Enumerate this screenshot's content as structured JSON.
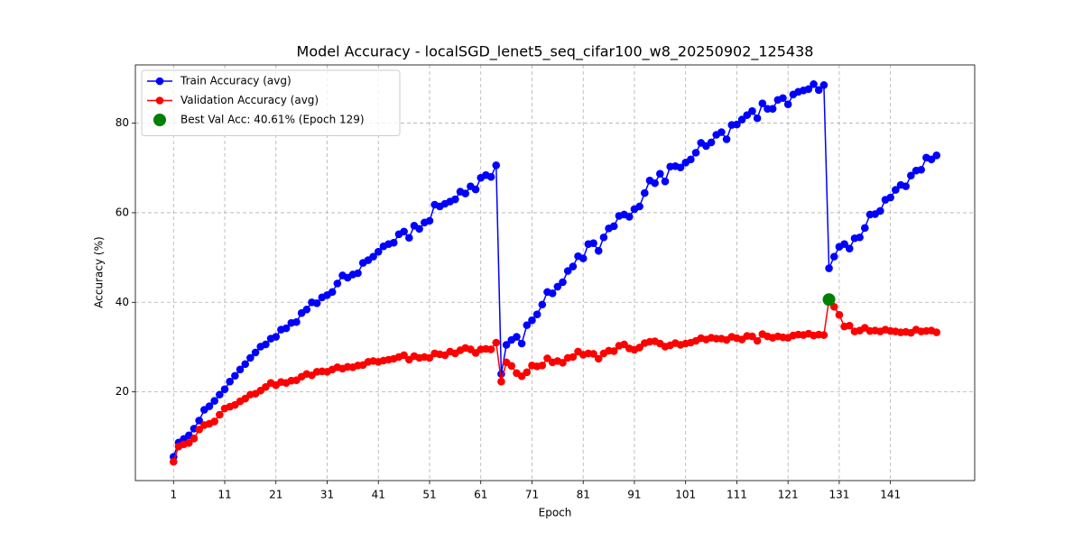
{
  "chart_data": {
    "type": "line",
    "title": "Model Accuracy - localSGD_lenet5_seq_cifar100_w8_20250902_125438",
    "xlabel": "Epoch",
    "ylabel": "Accuracy (%)",
    "x": [
      1,
      2,
      3,
      4,
      5,
      6,
      7,
      8,
      9,
      10,
      11,
      12,
      13,
      14,
      15,
      16,
      17,
      18,
      19,
      20,
      21,
      22,
      23,
      24,
      25,
      26,
      27,
      28,
      29,
      30,
      31,
      32,
      33,
      34,
      35,
      36,
      37,
      38,
      39,
      40,
      41,
      42,
      43,
      44,
      45,
      46,
      47,
      48,
      49,
      50,
      51,
      52,
      53,
      54,
      55,
      56,
      57,
      58,
      59,
      60,
      61,
      62,
      63,
      64,
      65,
      66,
      67,
      68,
      69,
      70,
      71,
      72,
      73,
      74,
      75,
      76,
      77,
      78,
      79,
      80,
      81,
      82,
      83,
      84,
      85,
      86,
      87,
      88,
      89,
      90,
      91,
      92,
      93,
      94,
      95,
      96,
      97,
      98,
      99,
      100,
      101,
      102,
      103,
      104,
      105,
      106,
      107,
      108,
      109,
      110,
      111,
      112,
      113,
      114,
      115,
      116,
      117,
      118,
      119,
      120,
      121,
      122,
      123,
      124,
      125,
      126,
      127,
      128,
      129,
      130,
      131,
      132,
      133,
      134,
      135,
      136,
      137,
      138,
      139,
      140,
      141,
      142,
      143,
      144,
      145,
      146,
      147,
      148,
      149,
      150
    ],
    "series": [
      {
        "name": "Train Accuracy (avg)",
        "color": "#0000ff",
        "values": [
          5.5,
          8.7,
          9.5,
          10.3,
          11.8,
          13.6,
          16.0,
          16.8,
          18.0,
          19.4,
          20.6,
          22.3,
          23.6,
          25.0,
          26.2,
          27.6,
          28.8,
          30.1,
          30.6,
          31.9,
          32.3,
          33.9,
          34.2,
          35.4,
          35.6,
          37.6,
          38.4,
          40.0,
          39.8,
          41.1,
          41.6,
          42.3,
          44.2,
          46.0,
          45.5,
          46.2,
          46.5,
          48.8,
          49.4,
          50.2,
          51.3,
          52.5,
          53.0,
          53.3,
          55.2,
          55.8,
          54.4,
          57.1,
          56.4,
          57.8,
          58.2,
          61.8,
          61.4,
          62.0,
          62.5,
          63.0,
          64.7,
          64.3,
          65.9,
          65.2,
          67.8,
          68.4,
          68.0,
          70.6,
          24.0,
          30.5,
          31.6,
          32.3,
          30.8,
          34.9,
          36.0,
          37.3,
          39.5,
          42.3,
          42.0,
          43.5,
          44.5,
          47.0,
          48.0,
          50.3,
          49.8,
          53.0,
          53.2,
          51.5,
          54.5,
          56.5,
          57.0,
          59.3,
          59.6,
          59.1,
          60.8,
          61.4,
          64.4,
          67.2,
          66.6,
          68.7,
          67.0,
          70.3,
          70.4,
          70.1,
          71.2,
          71.9,
          73.4,
          75.6,
          74.9,
          75.7,
          77.4,
          78.0,
          76.4,
          79.6,
          79.7,
          80.8,
          81.8,
          82.7,
          81.1,
          84.4,
          83.2,
          83.2,
          85.2,
          85.6,
          84.2,
          86.4,
          87.0,
          87.3,
          87.6,
          88.7,
          87.4,
          88.5,
          47.6,
          50.2,
          52.4,
          53.0,
          52.0,
          54.3,
          54.5,
          56.6,
          59.6,
          59.7,
          60.4,
          62.9,
          63.4,
          65.1,
          66.2,
          65.9,
          68.3,
          69.4,
          69.6,
          72.3,
          71.9,
          72.8
        ]
      },
      {
        "name": "Validation Accuracy (avg)",
        "color": "#ff0000",
        "values": [
          4.4,
          7.8,
          8.3,
          8.6,
          9.6,
          11.6,
          12.6,
          12.9,
          13.4,
          14.9,
          16.3,
          16.7,
          17.1,
          17.9,
          18.5,
          19.4,
          19.6,
          20.3,
          21.1,
          22.0,
          21.5,
          22.2,
          22.0,
          22.5,
          22.6,
          23.4,
          24.0,
          23.7,
          24.5,
          24.6,
          24.5,
          25.0,
          25.5,
          25.2,
          25.6,
          25.5,
          25.9,
          26.0,
          26.7,
          26.9,
          26.7,
          27.0,
          27.2,
          27.4,
          27.8,
          28.2,
          27.2,
          28.0,
          27.6,
          27.8,
          27.6,
          28.6,
          28.4,
          28.2,
          29.0,
          28.6,
          29.3,
          29.8,
          29.5,
          28.7,
          29.5,
          29.6,
          29.5,
          31.0,
          22.3,
          26.6,
          25.8,
          24.2,
          23.5,
          24.4,
          25.9,
          25.7,
          25.9,
          27.5,
          26.6,
          26.9,
          26.5,
          27.6,
          27.8,
          29.0,
          28.3,
          28.6,
          28.5,
          27.4,
          28.6,
          29.2,
          29.1,
          30.3,
          30.6,
          29.7,
          29.4,
          29.9,
          30.9,
          31.2,
          31.3,
          30.8,
          30.1,
          30.4,
          30.9,
          30.5,
          30.8,
          31.0,
          31.4,
          32.0,
          31.7,
          32.1,
          31.9,
          31.9,
          31.6,
          32.3,
          32.0,
          31.7,
          32.5,
          32.4,
          31.4,
          32.9,
          32.4,
          32.1,
          32.4,
          32.2,
          32.1,
          32.6,
          32.8,
          32.7,
          33.0,
          32.6,
          32.8,
          32.7,
          40.61,
          39.0,
          37.2,
          34.6,
          34.8,
          33.5,
          33.7,
          34.3,
          33.6,
          33.7,
          33.5,
          33.9,
          33.6,
          33.5,
          33.3,
          33.4,
          33.2,
          33.9,
          33.5,
          33.6,
          33.7,
          33.3
        ]
      }
    ],
    "best_point": {
      "name": "Best Val Acc: 40.61% (Epoch 129)",
      "color": "#008000",
      "x": 129,
      "y": 40.61
    },
    "xlim": [
      -6.45,
      157.45
    ],
    "ylim": [
      0.2,
      93.0
    ],
    "xticks": [
      1,
      11,
      21,
      31,
      41,
      51,
      61,
      71,
      81,
      91,
      101,
      111,
      121,
      131,
      141
    ],
    "yticks": [
      20,
      40,
      60,
      80
    ],
    "grid": true,
    "legend": "upper left"
  }
}
